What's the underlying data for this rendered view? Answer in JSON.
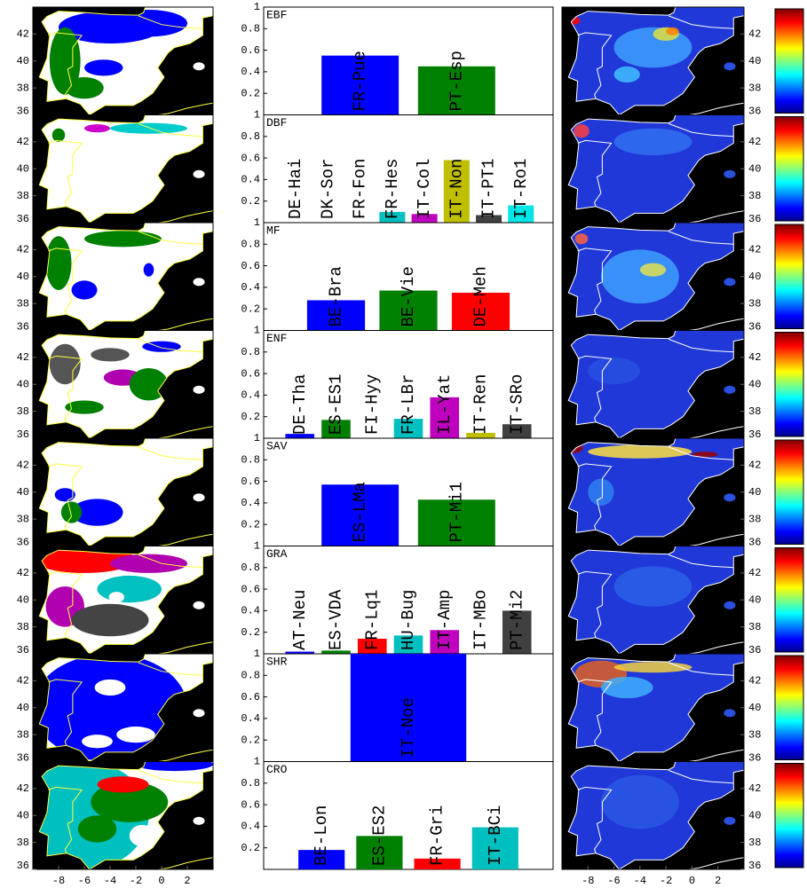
{
  "chart_data": [
    {
      "type": "bar",
      "title": "EBF",
      "categories": [
        "FR-Pue",
        "PT-Esp"
      ],
      "values": [
        0.55,
        0.45
      ],
      "colors": [
        "#0000ff",
        "#008000"
      ],
      "ylim": [
        0,
        1
      ],
      "yticks": [
        0.2,
        0.4,
        0.6,
        0.8,
        1
      ]
    },
    {
      "type": "bar",
      "title": "DBF",
      "categories": [
        "DE-Hai",
        "DK-Sor",
        "FR-Fon",
        "FR-Hes",
        "IT-Col",
        "IT-Non",
        "IT-PT1",
        "IT-Ro1"
      ],
      "values": [
        0,
        0,
        0,
        0.1,
        0.08,
        0.58,
        0.07,
        0.16
      ],
      "colors": [
        "#0000ff",
        "#008000",
        "#ff0000",
        "#00bfbf",
        "#bf00bf",
        "#bfbf00",
        "#404040",
        "#00e5e5"
      ],
      "ylim": [
        0,
        1
      ],
      "yticks": [
        0.2,
        0.4,
        0.6,
        0.8,
        1
      ]
    },
    {
      "type": "bar",
      "title": "MF",
      "categories": [
        "BE-Bra",
        "BE-Vie",
        "DE-Meh"
      ],
      "values": [
        0.28,
        0.37,
        0.35
      ],
      "colors": [
        "#0000ff",
        "#008000",
        "#ff0000"
      ],
      "ylim": [
        0,
        1
      ],
      "yticks": [
        0.2,
        0.4,
        0.6,
        0.8,
        1
      ]
    },
    {
      "type": "bar",
      "title": "ENF",
      "categories": [
        "DE-Tha",
        "ES-ES1",
        "FI-Hyy",
        "FR-LBr",
        "IL-Yat",
        "IT-Ren",
        "IT-SRo"
      ],
      "values": [
        0.04,
        0.17,
        0,
        0.18,
        0.38,
        0.05,
        0.13
      ],
      "colors": [
        "#0000ff",
        "#008000",
        "#ff0000",
        "#00bfbf",
        "#bf00bf",
        "#bfbf00",
        "#404040"
      ],
      "ylim": [
        0,
        1
      ],
      "yticks": [
        0.2,
        0.4,
        0.6,
        0.8,
        1
      ]
    },
    {
      "type": "bar",
      "title": "SAV",
      "categories": [
        "ES-LMa",
        "PT-Mi1"
      ],
      "values": [
        0.57,
        0.43
      ],
      "colors": [
        "#0000ff",
        "#008000"
      ],
      "ylim": [
        0,
        1
      ],
      "yticks": [
        0.2,
        0.4,
        0.6,
        0.8,
        1
      ]
    },
    {
      "type": "bar",
      "title": "GRA",
      "categories": [
        "AT-Neu",
        "ES-VDA",
        "FR-Lq1",
        "HU-Bug",
        "IT-Amp",
        "IT-MBo",
        "PT-Mi2"
      ],
      "values": [
        0.02,
        0.03,
        0.14,
        0.17,
        0.22,
        0,
        0.4
      ],
      "colors": [
        "#0000ff",
        "#008000",
        "#ff0000",
        "#00bfbf",
        "#bf00bf",
        "#bfbf00",
        "#404040"
      ],
      "ylim": [
        0,
        1
      ],
      "yticks": [
        0.2,
        0.4,
        0.6,
        0.8,
        1
      ]
    },
    {
      "type": "bar",
      "title": "SHR",
      "categories": [
        "IT-Noe"
      ],
      "values": [
        1
      ],
      "colors": [
        "#0000ff"
      ],
      "ylim": [
        0,
        1
      ],
      "yticks": [
        0.2,
        0.4,
        0.6,
        0.8,
        1
      ]
    },
    {
      "type": "bar",
      "title": "CRO",
      "categories": [
        "BE-Lon",
        "ES-ES2",
        "FR-Gri",
        "IT-BCi"
      ],
      "values": [
        0.18,
        0.31,
        0.1,
        0.39
      ],
      "colors": [
        "#0000ff",
        "#008000",
        "#ff0000",
        "#00bfbf"
      ],
      "ylim": [
        0,
        1
      ],
      "yticks": [
        0.2,
        0.4,
        0.6,
        0.8,
        1
      ]
    }
  ],
  "map_axes": {
    "xlim": [
      -10,
      4
    ],
    "ylim": [
      36,
      44
    ],
    "xticks": [
      -8,
      -6,
      -4,
      -2,
      0,
      2
    ],
    "yticks": [
      36,
      38,
      40,
      42
    ]
  }
}
